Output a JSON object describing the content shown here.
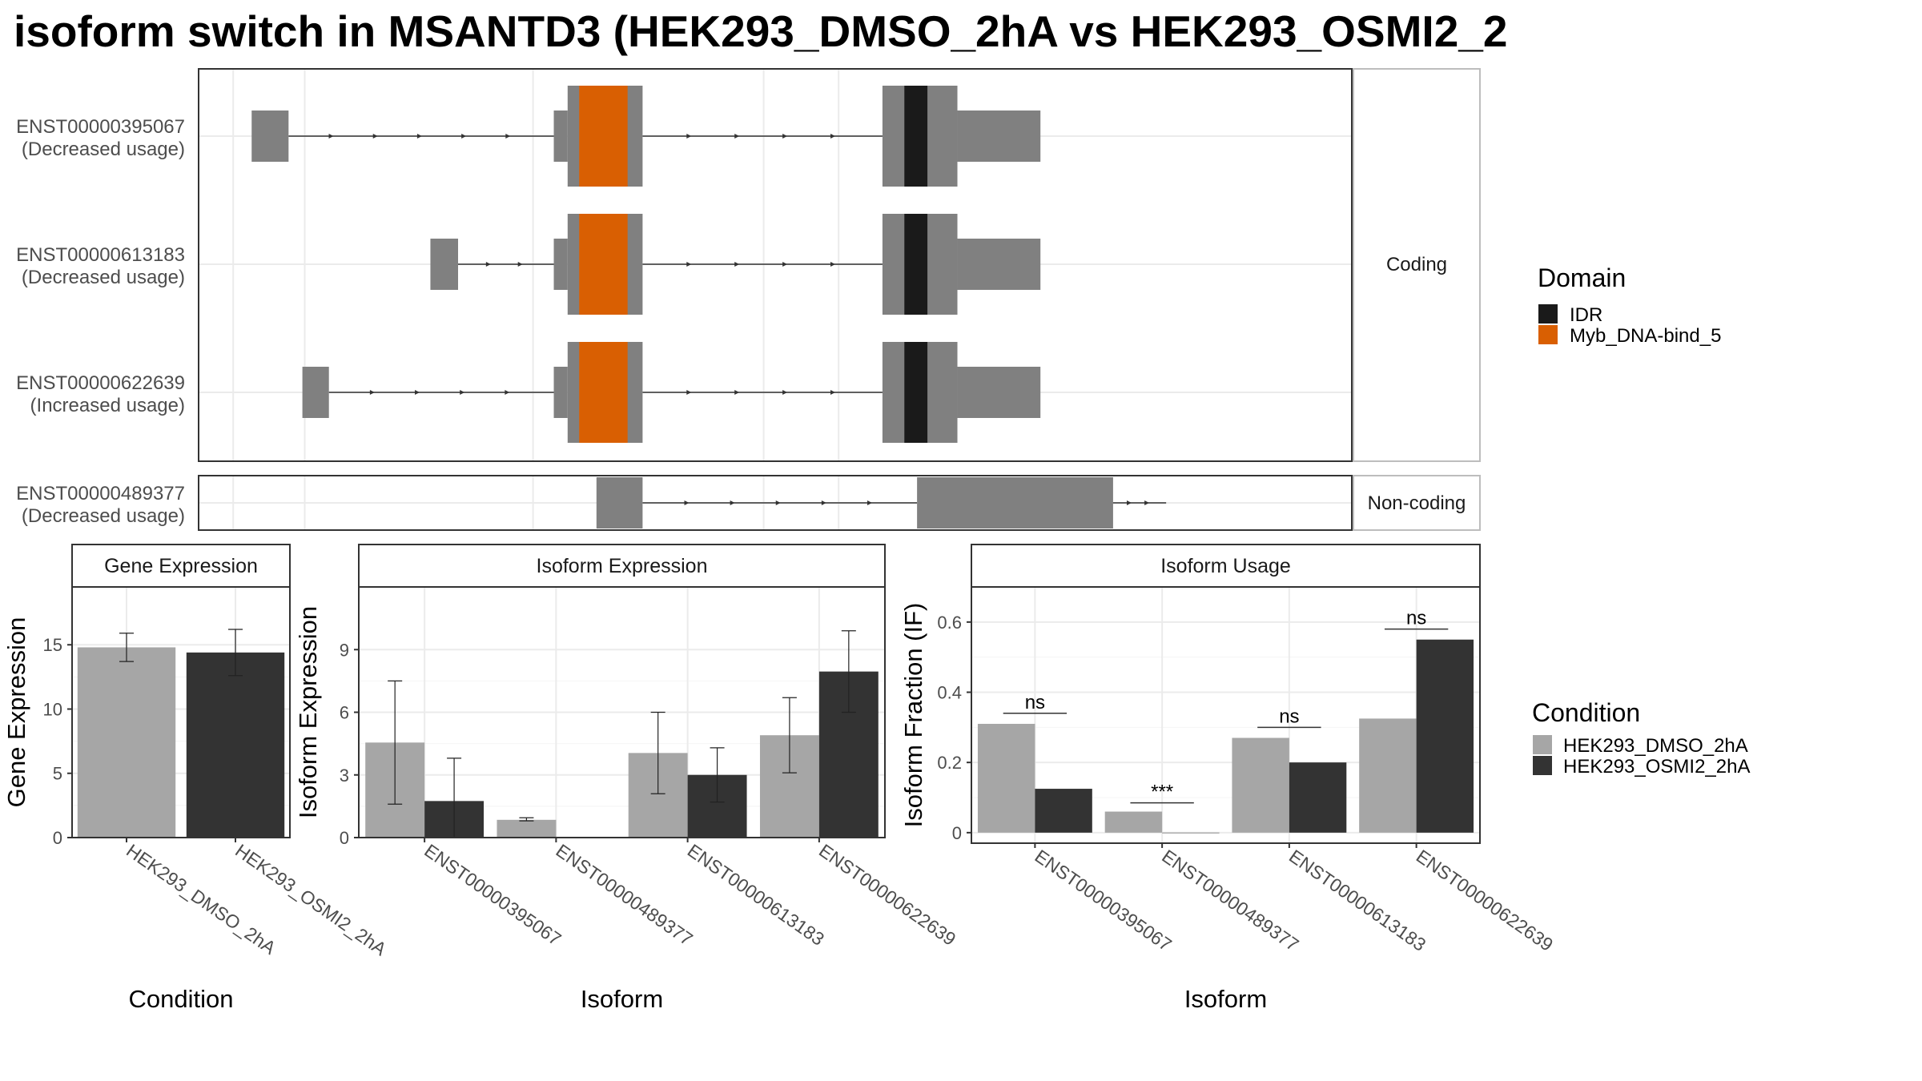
{
  "title": "isoform switch in MSANTD3 (HEK293_DMSO_2hA vs HEK293_OSMI2_2",
  "colors": {
    "exon": "#808080",
    "idr": "#1a1a1a",
    "myb": "#d95f02",
    "dmso": "#a6a6a6",
    "osmi": "#333333",
    "grid": "#ebebeb",
    "strip_bg": "#ffffff",
    "panel_border": "#333333"
  },
  "structure": {
    "facets": [
      {
        "label": "Coding",
        "isoforms": [
          {
            "id": "ENST00000395067",
            "usage": "(Decreased usage)"
          },
          {
            "id": "ENST00000613183",
            "usage": "(Decreased usage)"
          },
          {
            "id": "ENST00000622639",
            "usage": "(Increased usage)"
          }
        ]
      },
      {
        "label": "Non-coding",
        "isoforms": [
          {
            "id": "ENST00000489377",
            "usage": "(Decreased usage)"
          }
        ]
      }
    ]
  },
  "legend_domain": {
    "title": "Domain",
    "items": [
      {
        "label": "IDR",
        "color": "#1a1a1a"
      },
      {
        "label": "Myb_DNA-bind_5",
        "color": "#d95f02"
      }
    ]
  },
  "legend_condition": {
    "title": "Condition",
    "items": [
      {
        "label": "HEK293_DMSO_2hA",
        "color": "#a6a6a6"
      },
      {
        "label": "HEK293_OSMI2_2hA",
        "color": "#333333"
      }
    ]
  },
  "chart_data": [
    {
      "type": "bar",
      "title": "Gene Expression",
      "xlabel": "Condition",
      "ylabel": "Gene Expression",
      "ylim": [
        0,
        19.5
      ],
      "yticks": [
        0,
        5,
        10,
        15
      ],
      "categories": [
        "HEK293_DMSO_2hA",
        "HEK293_OSMI2_2hA"
      ],
      "values": [
        14.8,
        14.4
      ],
      "errors": [
        [
          13.7,
          15.9
        ],
        [
          12.6,
          16.2
        ]
      ]
    },
    {
      "type": "bar",
      "title": "Isoform Expression",
      "xlabel": "Isoform",
      "ylabel": "Isoform Expression",
      "ylim": [
        0,
        12
      ],
      "yticks": [
        0,
        3,
        6,
        9
      ],
      "categories": [
        "ENST00000395067",
        "ENST00000489377",
        "ENST00000613183",
        "ENST00000622639"
      ],
      "series": [
        {
          "name": "HEK293_DMSO_2hA",
          "values": [
            4.55,
            0.85,
            4.05,
            4.9
          ],
          "errors": [
            [
              1.6,
              7.5
            ],
            [
              0.8,
              0.95
            ],
            [
              2.1,
              6.0
            ],
            [
              3.1,
              6.7
            ]
          ]
        },
        {
          "name": "HEK293_OSMI2_2hA",
          "values": [
            1.75,
            0.0,
            3.0,
            7.95
          ],
          "errors": [
            [
              0.0,
              3.8
            ],
            [
              0.0,
              0.0
            ],
            [
              1.7,
              4.3
            ],
            [
              6.0,
              9.9
            ]
          ]
        }
      ]
    },
    {
      "type": "bar",
      "title": "Isoform Usage",
      "xlabel": "Isoform",
      "ylabel": "Isoform Fraction (IF)",
      "ylim": [
        -0.03,
        0.7
      ],
      "yticks": [
        0.0,
        0.2,
        0.4,
        0.6
      ],
      "categories": [
        "ENST00000395067",
        "ENST00000489377",
        "ENST00000613183",
        "ENST00000622639"
      ],
      "series": [
        {
          "name": "HEK293_DMSO_2hA",
          "values": [
            0.31,
            0.06,
            0.27,
            0.325
          ]
        },
        {
          "name": "HEK293_OSMI2_2hA",
          "values": [
            0.125,
            0.0,
            0.2,
            0.55
          ]
        }
      ],
      "significance": [
        "ns",
        "***",
        "ns",
        "ns"
      ],
      "significance_y": [
        0.34,
        0.085,
        0.3,
        0.58
      ]
    }
  ]
}
